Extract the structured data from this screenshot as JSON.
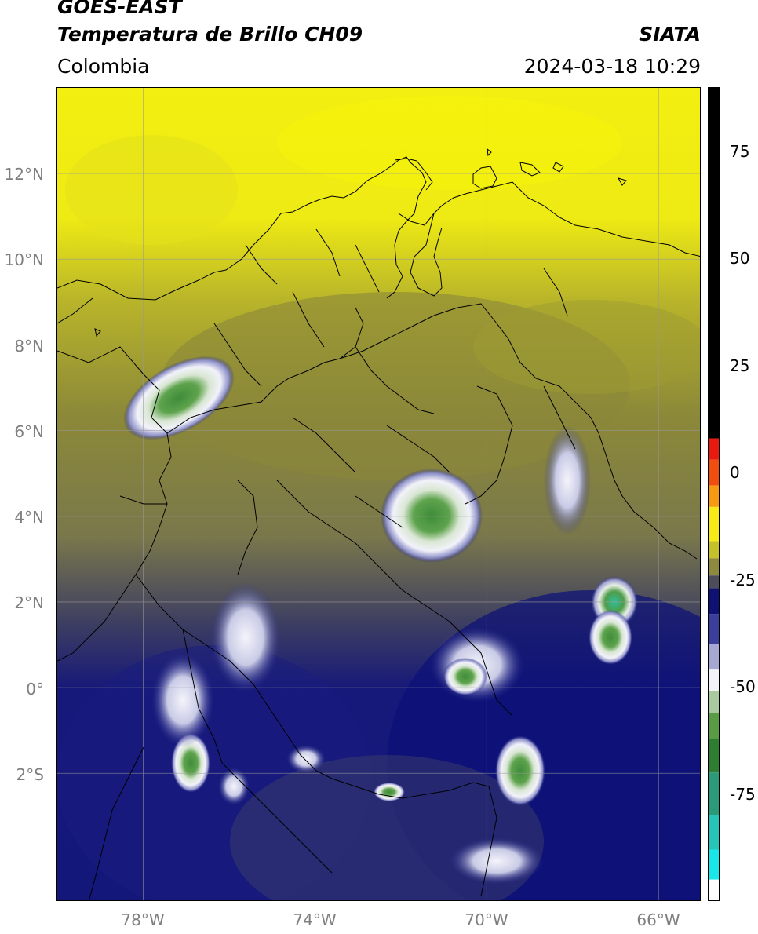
{
  "header": {
    "satellite": "GOES-EAST",
    "product": "Temperatura de Brillo CH09",
    "agency": "SIATA",
    "region": "Colombia",
    "datetime": "2024-03-18 10:29"
  },
  "map": {
    "lon_range": [
      -80,
      -65
    ],
    "lat_range": [
      -5,
      14
    ],
    "lat_ticks": [
      "12°N",
      "10°N",
      "8°N",
      "6°N",
      "4°N",
      "2°N",
      "0°",
      "2°S"
    ],
    "lat_values": [
      12,
      10,
      8,
      6,
      4,
      2,
      0,
      -2
    ],
    "lon_ticks": [
      "78°W",
      "74°W",
      "70°W",
      "66°W"
    ],
    "lon_values": [
      -78,
      -74,
      -70,
      -66
    ],
    "grid": true,
    "field_colors": {
      "warm_yellow": "#f2ef12",
      "olive": "#9f9c35",
      "gray_olive": "#7d7a4f",
      "navy": "#1d1f7c",
      "deep_navy": "#0f127a",
      "white_cloud": "#eeeef8",
      "cold_green": "#4a8f3a",
      "very_cold_cyan": "#2fbf98"
    }
  },
  "colorbar": {
    "range": [
      -100,
      90
    ],
    "ticks": [
      "75",
      "50",
      "25",
      "0",
      "-25",
      "-50",
      "-75"
    ],
    "tick_values": [
      75,
      50,
      25,
      0,
      -25,
      -50,
      -75
    ],
    "segments": [
      {
        "from": 90,
        "to": 8,
        "color": "#000000"
      },
      {
        "from": 8,
        "to": 3,
        "color": "#e8190f"
      },
      {
        "from": 3,
        "to": -3,
        "color": "#f04e0e"
      },
      {
        "from": -3,
        "to": -8,
        "color": "#f59a12"
      },
      {
        "from": -8,
        "to": -16,
        "color": "#f6ea17"
      },
      {
        "from": -16,
        "to": -20,
        "color": "#c5c12a"
      },
      {
        "from": -20,
        "to": -24,
        "color": "#8d8a3f"
      },
      {
        "from": -24,
        "to": -27,
        "color": "#4d4c5a"
      },
      {
        "from": -27,
        "to": -33,
        "color": "#0f1175"
      },
      {
        "from": -33,
        "to": -40,
        "color": "#3a3f9c"
      },
      {
        "from": -40,
        "to": -46,
        "color": "#a6a8d4"
      },
      {
        "from": -46,
        "to": -51,
        "color": "#f4f4f8"
      },
      {
        "from": -51,
        "to": -56,
        "color": "#a9c99f"
      },
      {
        "from": -56,
        "to": -62,
        "color": "#5a9c45"
      },
      {
        "from": -62,
        "to": -70,
        "color": "#2e7d32"
      },
      {
        "from": -70,
        "to": -80,
        "color": "#2a9a78"
      },
      {
        "from": -80,
        "to": -88,
        "color": "#27c4b8"
      },
      {
        "from": -88,
        "to": -95,
        "color": "#19e6e6"
      },
      {
        "from": -95,
        "to": -100,
        "color": "#ffffff"
      }
    ]
  }
}
